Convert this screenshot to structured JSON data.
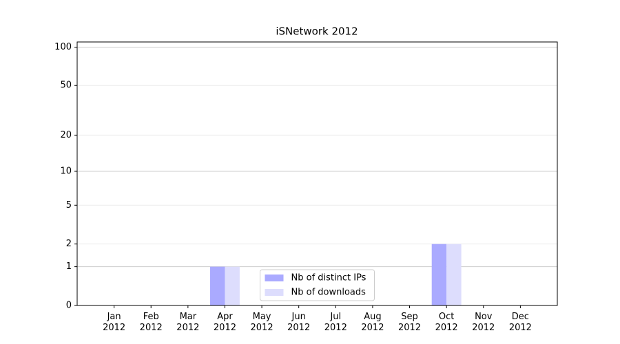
{
  "chart_data": {
    "type": "bar",
    "title": "iSNetwork 2012",
    "categories": [
      "Jan\n2012",
      "Feb\n2012",
      "Mar\n2012",
      "Apr\n2012",
      "May\n2012",
      "Jun\n2012",
      "Jul\n2012",
      "Aug\n2012",
      "Sep\n2012",
      "Oct\n2012",
      "Nov\n2012",
      "Dec\n2012"
    ],
    "series": [
      {
        "name": "Nb of distinct IPs",
        "color": "#aaaaff",
        "values": [
          0,
          0,
          0,
          1,
          0,
          0,
          0,
          0,
          0,
          2,
          0,
          0
        ]
      },
      {
        "name": "Nb of downloads",
        "color": "#ddddfd",
        "values": [
          0,
          0,
          0,
          1,
          0,
          0,
          0,
          0,
          0,
          2,
          0,
          0
        ]
      }
    ],
    "yscale": "log1p",
    "ylim": [
      0,
      110
    ],
    "yticks": [
      0,
      1,
      2,
      5,
      10,
      20,
      50,
      100
    ],
    "grid": true,
    "legend": "lower center"
  }
}
